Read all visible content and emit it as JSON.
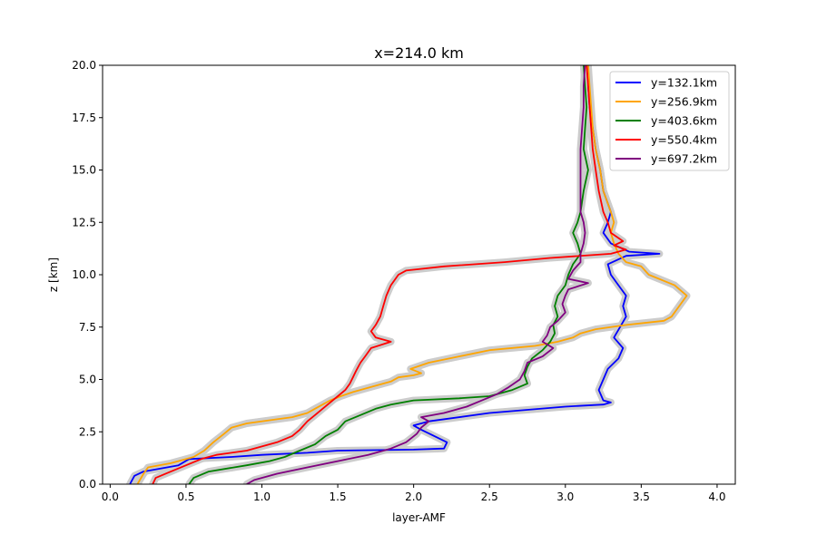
{
  "chart_data": {
    "type": "line",
    "title": "x=214.0 km",
    "xlabel": "layer-AMF",
    "ylabel": "z [km]",
    "xlim": [
      -0.05,
      4.12
    ],
    "ylim": [
      0,
      20
    ],
    "xticks": [
      "0.0",
      "0.5",
      "1.0",
      "1.5",
      "2.0",
      "2.5",
      "3.0",
      "3.5",
      "4.0"
    ],
    "xtick_values": [
      0,
      0.5,
      1,
      1.5,
      2,
      2.5,
      3,
      3.5,
      4
    ],
    "yticks": [
      "0.0",
      "2.5",
      "5.0",
      "7.5",
      "10.0",
      "12.5",
      "15.0",
      "17.5",
      "20.0"
    ],
    "ytick_values": [
      0,
      2.5,
      5,
      7.5,
      10,
      12.5,
      15,
      17.5,
      20
    ],
    "grid": false,
    "legend_position": "top-right",
    "uncertainty_band_color": "#cccccc",
    "series": [
      {
        "name": "y=132.1km",
        "color": "#0000ff",
        "points": [
          [
            0.13,
            0
          ],
          [
            0.16,
            0.4
          ],
          [
            0.22,
            0.6
          ],
          [
            0.45,
            0.9
          ],
          [
            0.52,
            1.2
          ],
          [
            0.8,
            1.3
          ],
          [
            1.0,
            1.4
          ],
          [
            1.3,
            1.5
          ],
          [
            1.5,
            1.6
          ],
          [
            2.0,
            1.65
          ],
          [
            2.2,
            1.7
          ],
          [
            2.22,
            2.0
          ],
          [
            2.05,
            2.6
          ],
          [
            2.0,
            2.8
          ],
          [
            2.1,
            3.0
          ],
          [
            2.5,
            3.4
          ],
          [
            3.0,
            3.7
          ],
          [
            3.25,
            3.8
          ],
          [
            3.3,
            3.9
          ],
          [
            3.25,
            4.0
          ],
          [
            3.22,
            4.5
          ],
          [
            3.25,
            5.0
          ],
          [
            3.28,
            5.5
          ],
          [
            3.35,
            6.0
          ],
          [
            3.38,
            6.5
          ],
          [
            3.32,
            7.0
          ],
          [
            3.36,
            7.5
          ],
          [
            3.4,
            8.0
          ],
          [
            3.38,
            8.5
          ],
          [
            3.4,
            9.0
          ],
          [
            3.35,
            9.5
          ],
          [
            3.3,
            10.0
          ],
          [
            3.28,
            10.5
          ],
          [
            3.4,
            10.9
          ],
          [
            3.62,
            11.0
          ],
          [
            3.42,
            11.1
          ],
          [
            3.3,
            11.5
          ],
          [
            3.25,
            12.0
          ],
          [
            3.28,
            12.5
          ],
          [
            3.3,
            13.0
          ],
          [
            3.25,
            14.0
          ],
          [
            3.23,
            15.0
          ],
          [
            3.2,
            16.0
          ],
          [
            3.18,
            17.0
          ],
          [
            3.16,
            18.0
          ],
          [
            3.15,
            19.0
          ],
          [
            3.15,
            20.0
          ]
        ]
      },
      {
        "name": "y=256.9km",
        "color": "#ffa500",
        "points": [
          [
            0.18,
            0
          ],
          [
            0.22,
            0.5
          ],
          [
            0.25,
            0.8
          ],
          [
            0.4,
            1.0
          ],
          [
            0.55,
            1.3
          ],
          [
            0.62,
            1.6
          ],
          [
            0.68,
            2.0
          ],
          [
            0.75,
            2.4
          ],
          [
            0.8,
            2.7
          ],
          [
            0.9,
            2.9
          ],
          [
            1.1,
            3.1
          ],
          [
            1.2,
            3.2
          ],
          [
            1.3,
            3.4
          ],
          [
            1.35,
            3.6
          ],
          [
            1.4,
            3.8
          ],
          [
            1.45,
            4.0
          ],
          [
            1.52,
            4.2
          ],
          [
            1.6,
            4.4
          ],
          [
            1.75,
            4.7
          ],
          [
            1.85,
            4.9
          ],
          [
            1.9,
            5.1
          ],
          [
            2.0,
            5.2
          ],
          [
            2.05,
            5.3
          ],
          [
            1.98,
            5.5
          ],
          [
            2.1,
            5.8
          ],
          [
            2.3,
            6.1
          ],
          [
            2.5,
            6.4
          ],
          [
            2.8,
            6.6
          ],
          [
            2.95,
            6.8
          ],
          [
            3.05,
            7.0
          ],
          [
            3.1,
            7.2
          ],
          [
            3.2,
            7.4
          ],
          [
            3.4,
            7.6
          ],
          [
            3.65,
            7.8
          ],
          [
            3.7,
            8.0
          ],
          [
            3.75,
            8.5
          ],
          [
            3.8,
            9.0
          ],
          [
            3.72,
            9.5
          ],
          [
            3.55,
            10.0
          ],
          [
            3.5,
            10.4
          ],
          [
            3.4,
            10.6
          ],
          [
            3.35,
            11.0
          ],
          [
            3.32,
            11.5
          ],
          [
            3.3,
            12.0
          ],
          [
            3.32,
            12.5
          ],
          [
            3.3,
            13.0
          ],
          [
            3.25,
            14.0
          ],
          [
            3.23,
            15.0
          ],
          [
            3.2,
            16.0
          ],
          [
            3.18,
            17.0
          ],
          [
            3.17,
            18.0
          ],
          [
            3.16,
            19.0
          ],
          [
            3.15,
            20.0
          ]
        ]
      },
      {
        "name": "y=403.6km",
        "color": "#008000",
        "points": [
          [
            0.52,
            0
          ],
          [
            0.55,
            0.3
          ],
          [
            0.65,
            0.6
          ],
          [
            0.9,
            0.9
          ],
          [
            1.05,
            1.1
          ],
          [
            1.15,
            1.3
          ],
          [
            1.25,
            1.6
          ],
          [
            1.35,
            1.9
          ],
          [
            1.42,
            2.3
          ],
          [
            1.5,
            2.6
          ],
          [
            1.55,
            3.0
          ],
          [
            1.65,
            3.3
          ],
          [
            1.75,
            3.6
          ],
          [
            1.85,
            3.8
          ],
          [
            2.0,
            4.0
          ],
          [
            2.3,
            4.1
          ],
          [
            2.5,
            4.2
          ],
          [
            2.65,
            4.5
          ],
          [
            2.75,
            4.8
          ],
          [
            2.73,
            5.2
          ],
          [
            2.75,
            5.6
          ],
          [
            2.78,
            6.0
          ],
          [
            2.85,
            6.4
          ],
          [
            2.9,
            6.8
          ],
          [
            2.93,
            7.2
          ],
          [
            2.92,
            7.6
          ],
          [
            2.95,
            8.0
          ],
          [
            2.93,
            8.5
          ],
          [
            2.95,
            9.0
          ],
          [
            3.0,
            9.5
          ],
          [
            3.02,
            10.0
          ],
          [
            3.05,
            10.5
          ],
          [
            3.1,
            11.0
          ],
          [
            3.08,
            11.5
          ],
          [
            3.05,
            12.0
          ],
          [
            3.08,
            12.5
          ],
          [
            3.1,
            13.0
          ],
          [
            3.12,
            14.0
          ],
          [
            3.15,
            15.0
          ],
          [
            3.12,
            16.0
          ],
          [
            3.13,
            17.0
          ],
          [
            3.14,
            18.0
          ],
          [
            3.13,
            19.0
          ],
          [
            3.12,
            20.0
          ]
        ]
      },
      {
        "name": "y=550.4km",
        "color": "#ff0000",
        "points": [
          [
            0.28,
            0
          ],
          [
            0.3,
            0.3
          ],
          [
            0.4,
            0.6
          ],
          [
            0.5,
            0.9
          ],
          [
            0.6,
            1.2
          ],
          [
            0.7,
            1.4
          ],
          [
            0.9,
            1.6
          ],
          [
            1.0,
            1.8
          ],
          [
            1.1,
            2.0
          ],
          [
            1.2,
            2.3
          ],
          [
            1.25,
            2.6
          ],
          [
            1.3,
            3.0
          ],
          [
            1.35,
            3.3
          ],
          [
            1.4,
            3.6
          ],
          [
            1.45,
            3.9
          ],
          [
            1.5,
            4.2
          ],
          [
            1.55,
            4.5
          ],
          [
            1.58,
            4.8
          ],
          [
            1.6,
            5.1
          ],
          [
            1.62,
            5.4
          ],
          [
            1.65,
            5.8
          ],
          [
            1.68,
            6.1
          ],
          [
            1.72,
            6.5
          ],
          [
            1.85,
            6.8
          ],
          [
            1.75,
            7.0
          ],
          [
            1.72,
            7.3
          ],
          [
            1.75,
            7.6
          ],
          [
            1.78,
            8.0
          ],
          [
            1.8,
            8.5
          ],
          [
            1.82,
            9.0
          ],
          [
            1.85,
            9.5
          ],
          [
            1.9,
            10.0
          ],
          [
            1.95,
            10.2
          ],
          [
            2.2,
            10.4
          ],
          [
            2.6,
            10.6
          ],
          [
            2.9,
            10.8
          ],
          [
            3.3,
            11.0
          ],
          [
            3.4,
            11.2
          ],
          [
            3.32,
            11.4
          ],
          [
            3.38,
            11.6
          ],
          [
            3.3,
            12.0
          ],
          [
            3.28,
            12.5
          ],
          [
            3.25,
            13.0
          ],
          [
            3.22,
            14.0
          ],
          [
            3.2,
            15.0
          ],
          [
            3.18,
            16.0
          ],
          [
            3.17,
            17.0
          ],
          [
            3.16,
            18.0
          ],
          [
            3.15,
            19.0
          ],
          [
            3.14,
            20.0
          ]
        ]
      },
      {
        "name": "y=697.2km",
        "color": "#800080",
        "points": [
          [
            0.9,
            0
          ],
          [
            0.95,
            0.2
          ],
          [
            1.1,
            0.5
          ],
          [
            1.3,
            0.8
          ],
          [
            1.5,
            1.1
          ],
          [
            1.7,
            1.4
          ],
          [
            1.85,
            1.7
          ],
          [
            1.95,
            2.0
          ],
          [
            2.02,
            2.4
          ],
          [
            2.05,
            2.7
          ],
          [
            2.1,
            3.0
          ],
          [
            2.05,
            3.2
          ],
          [
            2.2,
            3.4
          ],
          [
            2.35,
            3.7
          ],
          [
            2.45,
            4.0
          ],
          [
            2.55,
            4.3
          ],
          [
            2.62,
            4.6
          ],
          [
            2.7,
            5.0
          ],
          [
            2.73,
            5.4
          ],
          [
            2.75,
            5.8
          ],
          [
            2.85,
            6.1
          ],
          [
            2.92,
            6.5
          ],
          [
            2.85,
            6.8
          ],
          [
            2.88,
            7.1
          ],
          [
            2.9,
            7.5
          ],
          [
            2.95,
            7.8
          ],
          [
            3.0,
            8.2
          ],
          [
            2.98,
            8.6
          ],
          [
            3.0,
            9.0
          ],
          [
            3.02,
            9.3
          ],
          [
            3.15,
            9.6
          ],
          [
            3.02,
            9.8
          ],
          [
            3.05,
            10.2
          ],
          [
            3.1,
            10.6
          ],
          [
            3.1,
            11.0
          ],
          [
            3.12,
            11.5
          ],
          [
            3.13,
            12.0
          ],
          [
            3.12,
            12.5
          ],
          [
            3.1,
            13.0
          ],
          [
            3.1,
            14.0
          ],
          [
            3.1,
            15.0
          ],
          [
            3.1,
            16.0
          ],
          [
            3.11,
            17.0
          ],
          [
            3.12,
            18.0
          ],
          [
            3.12,
            19.0
          ],
          [
            3.13,
            20.0
          ]
        ]
      }
    ]
  }
}
